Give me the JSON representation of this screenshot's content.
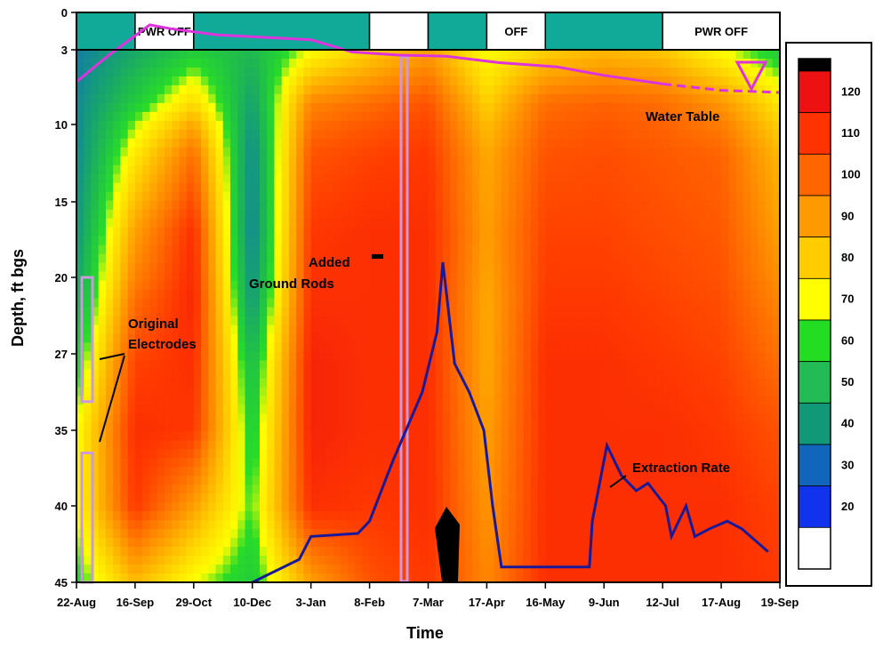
{
  "chart_data": {
    "type": "heatmap",
    "title": "",
    "xlabel": "Time",
    "ylabel": "Depth, ft bgs",
    "x_ticks": [
      "22-Aug",
      "16-Sep",
      "29-Oct",
      "10-Dec",
      "3-Jan",
      "8-Feb",
      "7-Mar",
      "17-Apr",
      "16-May",
      "9-Jun",
      "12-Jul",
      "17-Aug",
      "19-Sep"
    ],
    "y_ticks": [
      "0",
      "3",
      "10",
      "15",
      "20",
      "27",
      "35",
      "40",
      "45"
    ],
    "colorbar": {
      "ticks": [
        "120",
        "110",
        "100",
        "90",
        "80",
        "70",
        "60",
        "50",
        "40",
        "30",
        "20"
      ],
      "colors": [
        "#ee1111",
        "#ff3300",
        "#ff6600",
        "#ff9900",
        "#ffcc00",
        "#ffff00",
        "#22dd22",
        "#22bb55",
        "#119977",
        "#1166bb",
        "#1133ee",
        "#ffffff"
      ],
      "top_color": "#000000"
    },
    "heat_columns": [
      {
        "x": "22-Aug",
        "values": [
          40,
          42,
          42,
          45,
          50,
          60,
          70,
          70,
          62
        ]
      },
      {
        "x": "16-Sep",
        "values": [
          50,
          60,
          75,
          90,
          100,
          108,
          112,
          110,
          85
        ]
      },
      {
        "x": "29-Oct",
        "values": [
          60,
          78,
          100,
          112,
          114,
          112,
          110,
          90,
          70
        ]
      },
      {
        "x": "10-Dec",
        "values": [
          55,
          48,
          42,
          40,
          45,
          55,
          60,
          65,
          60
        ]
      },
      {
        "x": "3-Jan",
        "values": [
          70,
          95,
          105,
          110,
          112,
          115,
          115,
          112,
          90
        ]
      },
      {
        "x": "8-Feb",
        "values": [
          80,
          100,
          108,
          112,
          112,
          112,
          112,
          110,
          105
        ]
      },
      {
        "x": "7-Mar",
        "values": [
          90,
          105,
          110,
          112,
          112,
          112,
          112,
          112,
          110
        ]
      },
      {
        "x": "17-Apr",
        "values": [
          70,
          80,
          88,
          90,
          88,
          88,
          90,
          92,
          95
        ]
      },
      {
        "x": "16-May",
        "values": [
          80,
          100,
          105,
          108,
          110,
          112,
          112,
          112,
          112
        ]
      },
      {
        "x": "9-Jun",
        "values": [
          85,
          102,
          106,
          108,
          110,
          112,
          112,
          112,
          112
        ]
      },
      {
        "x": "12-Jul",
        "values": [
          82,
          100,
          104,
          106,
          108,
          110,
          112,
          112,
          112
        ]
      },
      {
        "x": "17-Aug",
        "values": [
          70,
          92,
          102,
          104,
          106,
          108,
          110,
          112,
          112
        ]
      },
      {
        "x": "19-Sep",
        "values": [
          60,
          75,
          85,
          90,
          95,
          100,
          105,
          108,
          110
        ]
      }
    ],
    "power_status": [
      {
        "from": "22-Aug",
        "to": "16-Sep",
        "state": "on",
        "label": ""
      },
      {
        "from": "16-Sep",
        "to": "29-Oct",
        "state": "off",
        "label": "PWR OFF"
      },
      {
        "from": "29-Oct",
        "to": "8-Feb",
        "state": "on",
        "label": ""
      },
      {
        "from": "8-Feb",
        "to": "7-Mar",
        "state": "off",
        "label": ""
      },
      {
        "from": "7-Mar",
        "to": "17-Apr",
        "state": "on",
        "label": ""
      },
      {
        "from": "17-Apr",
        "to": "16-May",
        "state": "off",
        "label": "OFF"
      },
      {
        "from": "16-May",
        "to": "12-Jul",
        "state": "on",
        "label": ""
      },
      {
        "from": "12-Jul",
        "to": "19-Sep",
        "state": "off",
        "label": "PWR OFF"
      }
    ],
    "water_table": {
      "label": "Water Table",
      "color": "#dd33dd",
      "points": [
        [
          0,
          6.0
        ],
        [
          0.55,
          3.5
        ],
        [
          1.25,
          1.0
        ],
        [
          1.6,
          1.3
        ],
        [
          2.4,
          1.8
        ],
        [
          3.2,
          2.0
        ],
        [
          4.0,
          2.2
        ],
        [
          4.7,
          3.2
        ],
        [
          5.5,
          3.5
        ],
        [
          6.3,
          3.6
        ],
        [
          7.2,
          4.2
        ],
        [
          8.2,
          4.6
        ],
        [
          9.0,
          5.4
        ],
        [
          10.0,
          6.2
        ],
        [
          11.0,
          6.8
        ],
        [
          12.0,
          7.0
        ]
      ],
      "dashed_from": 10.0
    },
    "extraction_rate": {
      "label": "Extraction Rate",
      "color": "#1a1a99",
      "points": [
        [
          3.0,
          45.0
        ],
        [
          3.8,
          43.5
        ],
        [
          4.0,
          42.0
        ],
        [
          4.8,
          41.8
        ],
        [
          5.0,
          41.0
        ],
        [
          5.4,
          37.0
        ],
        [
          5.9,
          31.0
        ],
        [
          6.15,
          25.0
        ],
        [
          6.25,
          19.0
        ],
        [
          6.45,
          28.0
        ],
        [
          6.7,
          31.0
        ],
        [
          6.95,
          35.0
        ],
        [
          7.1,
          40.0
        ],
        [
          7.25,
          44.0
        ],
        [
          7.8,
          44.0
        ],
        [
          8.3,
          44.0
        ],
        [
          8.75,
          44.0
        ],
        [
          8.8,
          41.0
        ],
        [
          9.05,
          36.0
        ],
        [
          9.3,
          38.0
        ],
        [
          9.55,
          39.0
        ],
        [
          9.75,
          38.5
        ],
        [
          9.95,
          39.5
        ],
        [
          10.05,
          40.0
        ],
        [
          10.15,
          42.0
        ],
        [
          10.4,
          40.0
        ],
        [
          10.55,
          42.0
        ],
        [
          10.8,
          41.5
        ],
        [
          11.1,
          41.0
        ],
        [
          11.35,
          41.5
        ],
        [
          11.8,
          43.0
        ]
      ]
    },
    "electrodes": [
      {
        "from_depth": 20.0,
        "to_depth": 32.0
      },
      {
        "from_depth": 36.5,
        "to_depth": 45.0
      }
    ],
    "annotations": {
      "original_electrodes": [
        "Original",
        "Electrodes"
      ],
      "added_ground_rods": [
        "Added",
        "Ground Rods"
      ]
    }
  }
}
